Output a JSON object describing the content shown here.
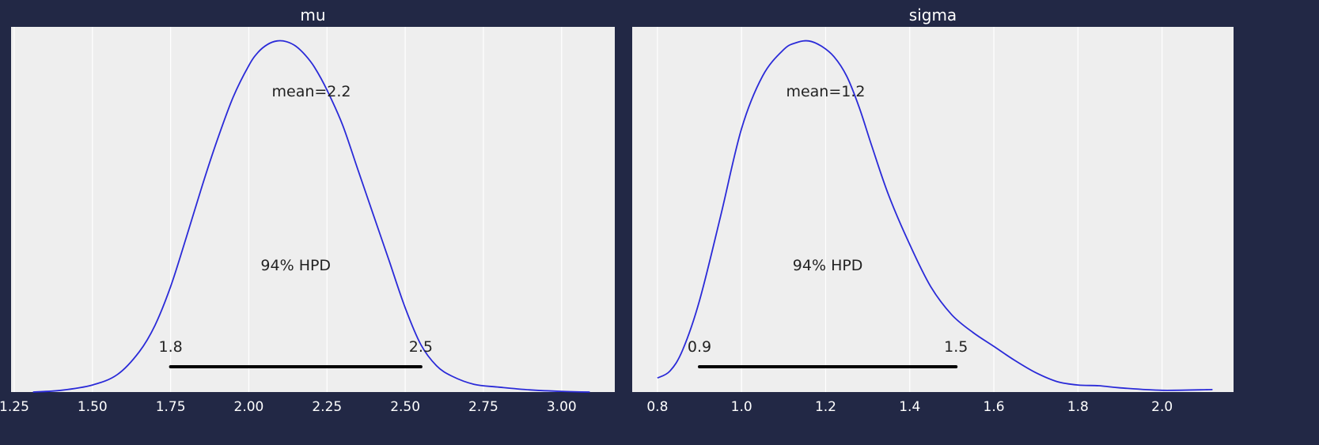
{
  "colors": {
    "figure_background": "#222845",
    "panel_background": "#eeeeee",
    "grid": "#ffffff",
    "curve": "#2a2ad8",
    "hpd_bar": "#000000",
    "annotation_text": "#222222",
    "title_text": "#ffffff",
    "tick_text": "#ffffff"
  },
  "chart_data": [
    {
      "type": "line",
      "title": "mu",
      "xlabel": "",
      "ylabel": "",
      "xlim": [
        1.24,
        3.17
      ],
      "ylim": [
        0,
        1.04
      ],
      "x_ticks": [
        1.25,
        1.5,
        1.75,
        2.0,
        2.25,
        2.5,
        2.75,
        3.0
      ],
      "x_tick_labels": [
        "1.25",
        "1.50",
        "1.75",
        "2.00",
        "2.25",
        "2.50",
        "2.75",
        "3.00"
      ],
      "grid": "vertical",
      "series": [
        {
          "x": [
            1.31,
            1.4,
            1.5,
            1.58,
            1.65,
            1.7,
            1.75,
            1.8,
            1.85,
            1.9,
            1.95,
            2.0,
            2.03,
            2.06,
            2.09,
            2.12,
            2.15,
            2.18,
            2.21,
            2.25,
            2.3,
            2.35,
            2.4,
            2.45,
            2.5,
            2.55,
            2.6,
            2.65,
            2.72,
            2.8,
            2.9,
            3.0,
            3.09
          ],
          "y": [
            0.0,
            0.005,
            0.02,
            0.05,
            0.115,
            0.19,
            0.3,
            0.44,
            0.585,
            0.72,
            0.84,
            0.93,
            0.968,
            0.99,
            1.0,
            0.998,
            0.985,
            0.96,
            0.925,
            0.86,
            0.76,
            0.63,
            0.5,
            0.37,
            0.24,
            0.135,
            0.075,
            0.045,
            0.022,
            0.014,
            0.006,
            0.002,
            0.0
          ]
        }
      ],
      "mean_label": "mean=2.2",
      "mean_value": 2.2,
      "hpd_label": "94% HPD",
      "hpd": [
        1.75,
        2.55
      ],
      "hpd_labels": [
        "1.8",
        "2.5"
      ]
    },
    {
      "type": "line",
      "title": "sigma",
      "xlabel": "",
      "ylabel": "",
      "xlim": [
        0.74,
        2.17
      ],
      "ylim": [
        0,
        1.04
      ],
      "x_ticks": [
        0.8,
        1.0,
        1.2,
        1.4,
        1.6,
        1.8,
        2.0
      ],
      "x_tick_labels": [
        "0.8",
        "1.0",
        "1.2",
        "1.4",
        "1.6",
        "1.8",
        "2.0"
      ],
      "grid": "vertical",
      "series": [
        {
          "x": [
            0.8,
            0.83,
            0.86,
            0.9,
            0.95,
            1.0,
            1.05,
            1.1,
            1.13,
            1.16,
            1.19,
            1.22,
            1.25,
            1.28,
            1.31,
            1.35,
            1.4,
            1.45,
            1.5,
            1.55,
            1.6,
            1.65,
            1.7,
            1.75,
            1.8,
            1.85,
            1.9,
            2.0,
            2.12
          ],
          "y": [
            0.04,
            0.06,
            0.12,
            0.26,
            0.5,
            0.75,
            0.9,
            0.975,
            0.995,
            1.0,
            0.985,
            0.955,
            0.9,
            0.81,
            0.7,
            0.56,
            0.42,
            0.3,
            0.22,
            0.17,
            0.13,
            0.09,
            0.055,
            0.03,
            0.02,
            0.018,
            0.012,
            0.005,
            0.007
          ]
        }
      ],
      "mean_label": "mean=1.2",
      "mean_value": 1.2,
      "hpd_label": "94% HPD",
      "hpd": [
        0.9,
        1.51
      ],
      "hpd_labels": [
        "0.9",
        "1.5"
      ]
    }
  ]
}
